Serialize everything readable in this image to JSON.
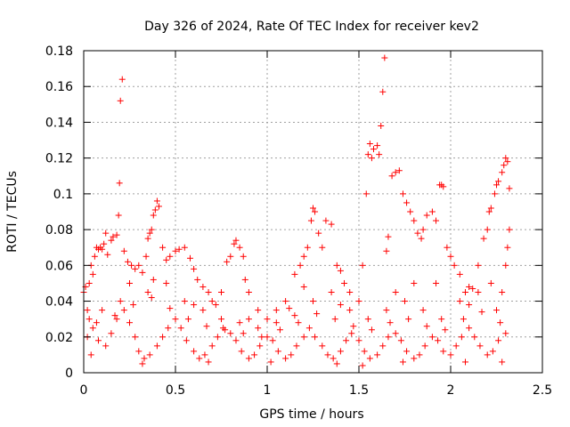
{
  "chart_data": {
    "type": "scatter",
    "title": "Day 326 of 2024, Rate Of TEC Index for receiver kev2",
    "xlabel": "GPS time / hours",
    "ylabel": "ROTI / TECUs",
    "xlim": [
      0,
      2.5
    ],
    "ylim": [
      0,
      0.18
    ],
    "xticks": [
      "0",
      "0.5",
      "1",
      "1.5",
      "2",
      "2.5"
    ],
    "yticks": [
      "0",
      "0.02",
      "0.04",
      "0.06",
      "0.08",
      "0.1",
      "0.12",
      "0.14",
      "0.16",
      "0.18"
    ],
    "grid": true,
    "marker": "+",
    "series": [
      {
        "name": "kev2",
        "color": "#ff0000",
        "points": [
          [
            0.0,
            0.045
          ],
          [
            0.01,
            0.048
          ],
          [
            0.02,
            0.035
          ],
          [
            0.03,
            0.05
          ],
          [
            0.04,
            0.06
          ],
          [
            0.05,
            0.055
          ],
          [
            0.06,
            0.065
          ],
          [
            0.07,
            0.07
          ],
          [
            0.08,
            0.069
          ],
          [
            0.09,
            0.07
          ],
          [
            0.1,
            0.069
          ],
          [
            0.11,
            0.072
          ],
          [
            0.12,
            0.078
          ],
          [
            0.13,
            0.066
          ],
          [
            0.15,
            0.074
          ],
          [
            0.16,
            0.076
          ],
          [
            0.18,
            0.077
          ],
          [
            0.19,
            0.088
          ],
          [
            0.195,
            0.106
          ],
          [
            0.2,
            0.152
          ],
          [
            0.21,
            0.164
          ],
          [
            0.22,
            0.068
          ],
          [
            0.24,
            0.062
          ],
          [
            0.26,
            0.06
          ],
          [
            0.28,
            0.058
          ],
          [
            0.3,
            0.06
          ],
          [
            0.32,
            0.056
          ],
          [
            0.34,
            0.065
          ],
          [
            0.35,
            0.075
          ],
          [
            0.36,
            0.078
          ],
          [
            0.37,
            0.08
          ],
          [
            0.38,
            0.088
          ],
          [
            0.39,
            0.091
          ],
          [
            0.4,
            0.096
          ],
          [
            0.41,
            0.093
          ],
          [
            0.43,
            0.07
          ],
          [
            0.45,
            0.063
          ],
          [
            0.47,
            0.065
          ],
          [
            0.5,
            0.068
          ],
          [
            0.52,
            0.069
          ],
          [
            0.55,
            0.07
          ],
          [
            0.58,
            0.064
          ],
          [
            0.6,
            0.058
          ],
          [
            0.62,
            0.052
          ],
          [
            0.65,
            0.048
          ],
          [
            0.68,
            0.045
          ],
          [
            0.7,
            0.04
          ],
          [
            0.72,
            0.038
          ],
          [
            0.75,
            0.045
          ],
          [
            0.78,
            0.062
          ],
          [
            0.8,
            0.065
          ],
          [
            0.82,
            0.072
          ],
          [
            0.83,
            0.074
          ],
          [
            0.85,
            0.07
          ],
          [
            0.87,
            0.065
          ],
          [
            0.88,
            0.052
          ],
          [
            0.9,
            0.045
          ],
          [
            0.95,
            0.035
          ],
          [
            1.0,
            0.03
          ],
          [
            1.05,
            0.035
          ],
          [
            1.1,
            0.04
          ],
          [
            1.15,
            0.055
          ],
          [
            1.18,
            0.06
          ],
          [
            1.2,
            0.065
          ],
          [
            1.22,
            0.07
          ],
          [
            1.24,
            0.085
          ],
          [
            1.25,
            0.092
          ],
          [
            1.26,
            0.09
          ],
          [
            1.28,
            0.078
          ],
          [
            1.3,
            0.07
          ],
          [
            1.32,
            0.085
          ],
          [
            1.35,
            0.083
          ],
          [
            1.38,
            0.06
          ],
          [
            1.4,
            0.057
          ],
          [
            1.42,
            0.05
          ],
          [
            1.45,
            0.045
          ],
          [
            1.5,
            0.04
          ],
          [
            1.52,
            0.06
          ],
          [
            1.54,
            0.1
          ],
          [
            1.55,
            0.122
          ],
          [
            1.56,
            0.128
          ],
          [
            1.57,
            0.12
          ],
          [
            1.58,
            0.125
          ],
          [
            1.6,
            0.127
          ],
          [
            1.61,
            0.122
          ],
          [
            1.62,
            0.138
          ],
          [
            1.63,
            0.157
          ],
          [
            1.64,
            0.176
          ],
          [
            1.65,
            0.068
          ],
          [
            1.66,
            0.076
          ],
          [
            1.68,
            0.11
          ],
          [
            1.7,
            0.112
          ],
          [
            1.72,
            0.113
          ],
          [
            1.74,
            0.1
          ],
          [
            1.76,
            0.095
          ],
          [
            1.78,
            0.09
          ],
          [
            1.8,
            0.085
          ],
          [
            1.82,
            0.078
          ],
          [
            1.84,
            0.075
          ],
          [
            1.85,
            0.08
          ],
          [
            1.87,
            0.088
          ],
          [
            1.9,
            0.09
          ],
          [
            1.92,
            0.085
          ],
          [
            1.94,
            0.105
          ],
          [
            1.95,
            0.105
          ],
          [
            1.96,
            0.104
          ],
          [
            1.98,
            0.07
          ],
          [
            2.0,
            0.065
          ],
          [
            2.02,
            0.06
          ],
          [
            2.05,
            0.055
          ],
          [
            2.08,
            0.045
          ],
          [
            2.1,
            0.048
          ],
          [
            2.12,
            0.047
          ],
          [
            2.15,
            0.06
          ],
          [
            2.18,
            0.075
          ],
          [
            2.2,
            0.08
          ],
          [
            2.21,
            0.09
          ],
          [
            2.22,
            0.092
          ],
          [
            2.24,
            0.1
          ],
          [
            2.25,
            0.105
          ],
          [
            2.26,
            0.107
          ],
          [
            2.28,
            0.112
          ],
          [
            2.29,
            0.116
          ],
          [
            2.3,
            0.12
          ],
          [
            2.31,
            0.118
          ],
          [
            2.32,
            0.103
          ],
          [
            2.32,
            0.08
          ],
          [
            2.31,
            0.07
          ],
          [
            2.3,
            0.06
          ],
          [
            2.28,
            0.045
          ],
          [
            0.02,
            0.02
          ],
          [
            0.05,
            0.025
          ],
          [
            0.08,
            0.018
          ],
          [
            0.12,
            0.015
          ],
          [
            0.15,
            0.022
          ],
          [
            0.18,
            0.03
          ],
          [
            0.22,
            0.035
          ],
          [
            0.25,
            0.028
          ],
          [
            0.28,
            0.02
          ],
          [
            0.3,
            0.012
          ],
          [
            0.33,
            0.008
          ],
          [
            0.36,
            0.01
          ],
          [
            0.4,
            0.015
          ],
          [
            0.43,
            0.02
          ],
          [
            0.46,
            0.025
          ],
          [
            0.5,
            0.03
          ],
          [
            0.53,
            0.025
          ],
          [
            0.56,
            0.018
          ],
          [
            0.6,
            0.012
          ],
          [
            0.63,
            0.008
          ],
          [
            0.66,
            0.01
          ],
          [
            0.7,
            0.015
          ],
          [
            0.73,
            0.02
          ],
          [
            0.76,
            0.025
          ],
          [
            0.8,
            0.022
          ],
          [
            0.83,
            0.018
          ],
          [
            0.86,
            0.012
          ],
          [
            0.9,
            0.008
          ],
          [
            0.93,
            0.01
          ],
          [
            0.96,
            0.015
          ],
          [
            1.0,
            0.02
          ],
          [
            1.03,
            0.018
          ],
          [
            1.06,
            0.012
          ],
          [
            1.1,
            0.008
          ],
          [
            1.13,
            0.01
          ],
          [
            1.16,
            0.015
          ],
          [
            1.2,
            0.02
          ],
          [
            1.23,
            0.025
          ],
          [
            1.26,
            0.02
          ],
          [
            1.3,
            0.015
          ],
          [
            1.33,
            0.01
          ],
          [
            1.36,
            0.008
          ],
          [
            1.4,
            0.012
          ],
          [
            1.43,
            0.018
          ],
          [
            1.46,
            0.022
          ],
          [
            1.5,
            0.018
          ],
          [
            1.53,
            0.012
          ],
          [
            1.56,
            0.008
          ],
          [
            1.6,
            0.01
          ],
          [
            1.63,
            0.015
          ],
          [
            1.66,
            0.02
          ],
          [
            1.7,
            0.022
          ],
          [
            1.73,
            0.018
          ],
          [
            1.76,
            0.012
          ],
          [
            1.8,
            0.008
          ],
          [
            1.83,
            0.01
          ],
          [
            1.86,
            0.015
          ],
          [
            1.9,
            0.02
          ],
          [
            1.93,
            0.018
          ],
          [
            1.96,
            0.012
          ],
          [
            2.0,
            0.01
          ],
          [
            2.03,
            0.015
          ],
          [
            2.06,
            0.02
          ],
          [
            2.1,
            0.025
          ],
          [
            2.13,
            0.02
          ],
          [
            2.16,
            0.015
          ],
          [
            2.2,
            0.01
          ],
          [
            2.23,
            0.012
          ],
          [
            2.26,
            0.018
          ],
          [
            2.3,
            0.022
          ],
          [
            0.03,
            0.03
          ],
          [
            0.1,
            0.035
          ],
          [
            0.2,
            0.04
          ],
          [
            0.35,
            0.045
          ],
          [
            0.45,
            0.05
          ],
          [
            0.55,
            0.04
          ],
          [
            0.65,
            0.035
          ],
          [
            0.75,
            0.03
          ],
          [
            0.85,
            0.028
          ],
          [
            0.95,
            0.025
          ],
          [
            1.05,
            0.028
          ],
          [
            1.15,
            0.032
          ],
          [
            1.25,
            0.04
          ],
          [
            1.35,
            0.045
          ],
          [
            1.45,
            0.035
          ],
          [
            1.55,
            0.03
          ],
          [
            1.65,
            0.035
          ],
          [
            1.75,
            0.04
          ],
          [
            1.85,
            0.035
          ],
          [
            1.95,
            0.03
          ],
          [
            2.05,
            0.04
          ],
          [
            2.15,
            0.045
          ],
          [
            2.25,
            0.035
          ],
          [
            0.07,
            0.028
          ],
          [
            0.17,
            0.032
          ],
          [
            0.27,
            0.038
          ],
          [
            0.37,
            0.042
          ],
          [
            0.47,
            0.036
          ],
          [
            0.57,
            0.03
          ],
          [
            0.67,
            0.026
          ],
          [
            0.77,
            0.024
          ],
          [
            0.87,
            0.022
          ],
          [
            0.97,
            0.02
          ],
          [
            1.07,
            0.024
          ],
          [
            1.17,
            0.028
          ],
          [
            1.27,
            0.033
          ],
          [
            1.37,
            0.03
          ],
          [
            1.47,
            0.026
          ],
          [
            1.57,
            0.024
          ],
          [
            1.67,
            0.028
          ],
          [
            1.77,
            0.03
          ],
          [
            1.87,
            0.026
          ],
          [
            1.97,
            0.024
          ],
          [
            2.07,
            0.03
          ],
          [
            2.17,
            0.034
          ],
          [
            2.27,
            0.028
          ],
          [
            0.6,
            0.038
          ],
          [
            0.9,
            0.03
          ],
          [
            1.12,
            0.036
          ],
          [
            1.4,
            0.038
          ],
          [
            1.7,
            0.045
          ],
          [
            1.92,
            0.05
          ],
          [
            2.1,
            0.038
          ],
          [
            0.25,
            0.05
          ],
          [
            0.38,
            0.052
          ],
          [
            1.2,
            0.048
          ],
          [
            1.8,
            0.05
          ],
          [
            2.22,
            0.05
          ],
          [
            0.04,
            0.01
          ],
          [
            0.32,
            0.005
          ],
          [
            0.68,
            0.006
          ],
          [
            1.02,
            0.006
          ],
          [
            1.38,
            0.005
          ],
          [
            1.52,
            0.004
          ],
          [
            1.74,
            0.006
          ],
          [
            2.08,
            0.006
          ],
          [
            2.28,
            0.006
          ]
        ]
      }
    ]
  }
}
